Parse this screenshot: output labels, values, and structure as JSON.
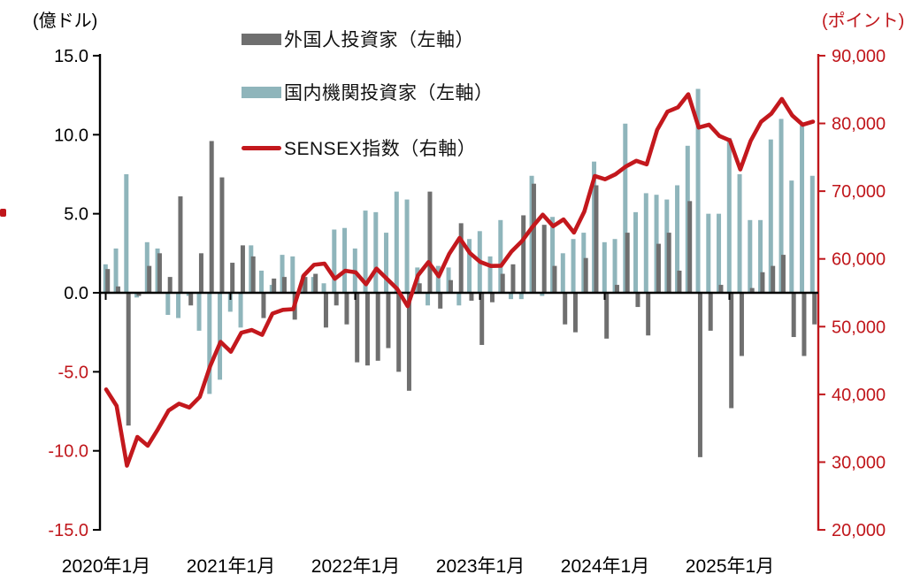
{
  "header": {
    "left_axis_unit": "(億ドル)",
    "right_axis_unit": "(ポイント)"
  },
  "legend": [
    {
      "label": "外国人投資家（左軸）",
      "type": "bar",
      "color": "#6f6f6f"
    },
    {
      "label": "国内機関投資家（左軸）",
      "type": "bar",
      "color": "#8fb5bb"
    },
    {
      "label": "SENSEX指数（右軸）",
      "type": "line",
      "color": "#c3181d"
    }
  ],
  "chart_data": {
    "type": "bar+line",
    "x": {
      "start_month": "2020-01",
      "month_count": 69,
      "year_ticks": [
        {
          "index": 0,
          "label": "2020年1月"
        },
        {
          "index": 12,
          "label": "2021年1月"
        },
        {
          "index": 24,
          "label": "2022年1月"
        },
        {
          "index": 36,
          "label": "2023年1月"
        },
        {
          "index": 48,
          "label": "2024年1月"
        },
        {
          "index": 60,
          "label": "2025年1月"
        }
      ]
    },
    "left_axis": {
      "label": "(億ドル)",
      "min": -15,
      "max": 15,
      "step": 5,
      "ticks": [
        {
          "value": 15,
          "label": "15.0"
        },
        {
          "value": 10,
          "label": "10.0"
        },
        {
          "value": 5,
          "label": "5.0"
        },
        {
          "value": 0,
          "label": "0.0"
        },
        {
          "value": -5,
          "label": "-5.0"
        },
        {
          "value": -10,
          "label": "-10.0"
        },
        {
          "value": -15,
          "label": "-15.0"
        }
      ],
      "positive_label_color": "#000000",
      "negative_label_color": "#c0161b"
    },
    "right_axis": {
      "label": "(ポイント)",
      "min": 20000,
      "max": 90000,
      "step": 10000,
      "color": "#c0161b",
      "ticks": [
        {
          "value": 90000,
          "label": "90,000"
        },
        {
          "value": 80000,
          "label": "80,000"
        },
        {
          "value": 70000,
          "label": "70,000"
        },
        {
          "value": 60000,
          "label": "60,000"
        },
        {
          "value": 50000,
          "label": "50,000"
        },
        {
          "value": 40000,
          "label": "40,000"
        },
        {
          "value": 30000,
          "label": "30,000"
        },
        {
          "value": 20000,
          "label": "20,000"
        }
      ]
    },
    "series": [
      {
        "name": "外国人投資家（左軸）",
        "type": "bar",
        "axis": "left",
        "color": "#6f6f6f",
        "values": [
          1.5,
          0.4,
          -8.4,
          -0.2,
          1.7,
          2.5,
          1.0,
          6.1,
          -0.8,
          2.5,
          9.6,
          7.3,
          1.9,
          3.0,
          2.3,
          -1.6,
          0.9,
          1.0,
          -1.7,
          1.0,
          1.2,
          -2.2,
          -0.8,
          -2.0,
          -4.4,
          -4.6,
          -4.3,
          -3.5,
          -5.0,
          -6.2,
          0.6,
          6.4,
          -1.0,
          0.8,
          4.4,
          -0.5,
          -3.3,
          -0.6,
          1.2,
          1.8,
          4.9,
          6.9,
          4.3,
          1.7,
          -2.0,
          -2.5,
          2.2,
          6.8,
          -2.9,
          0.5,
          3.8,
          -0.9,
          -2.7,
          3.1,
          3.8,
          1.4,
          5.8,
          -10.4,
          -2.4,
          0.5,
          -7.3,
          -4.0,
          0.3,
          1.3,
          1.7,
          2.4,
          -2.8,
          -4.0,
          -2.0
        ]
      },
      {
        "name": "国内機関投資家（左軸）",
        "type": "bar",
        "axis": "left",
        "color": "#8fb5bb",
        "values": [
          1.8,
          2.8,
          7.5,
          -0.3,
          3.2,
          2.8,
          -1.4,
          -1.6,
          -0.2,
          -2.4,
          -6.4,
          -5.5,
          -1.2,
          -2.2,
          3.0,
          1.4,
          0.5,
          2.4,
          2.3,
          1.1,
          1.0,
          0.6,
          4.0,
          4.1,
          2.8,
          5.2,
          5.1,
          3.8,
          6.4,
          5.9,
          1.6,
          -0.8,
          1.7,
          1.6,
          -0.8,
          3.4,
          3.9,
          2.3,
          4.6,
          -0.4,
          -0.4,
          7.4,
          -0.2,
          4.8,
          2.5,
          3.4,
          3.8,
          8.3,
          3.2,
          3.4,
          10.7,
          5.1,
          6.3,
          6.2,
          5.9,
          6.8,
          9.3,
          12.9,
          5.0,
          5.0,
          9.8,
          7.5,
          4.6,
          4.6,
          9.7,
          11.0,
          7.1,
          10.6,
          7.4
        ]
      },
      {
        "name": "SENSEX指数（右軸）",
        "type": "line",
        "axis": "right",
        "color": "#c3181d",
        "values": [
          40723,
          38297,
          29468,
          33718,
          32424,
          34916,
          37607,
          38628,
          38068,
          39614,
          44150,
          47751,
          46286,
          49100,
          49509,
          48782,
          51937,
          52483,
          52587,
          57552,
          59126,
          59307,
          57065,
          58254,
          58014,
          56247,
          58569,
          57061,
          55566,
          53019,
          57570,
          59537,
          57427,
          60747,
          63100,
          60841,
          59550,
          58962,
          58992,
          61112,
          62622,
          64719,
          66527,
          64831,
          65828,
          63875,
          66988,
          72240,
          71752,
          72500,
          73651,
          74483,
          73961,
          79033,
          81741,
          82366,
          84300,
          79389,
          79803,
          78139,
          77501,
          73198,
          77415,
          80242,
          81451,
          83606,
          81186,
          79810,
          80268
        ]
      }
    ],
    "grid": false,
    "legend_position": "top-center"
  }
}
